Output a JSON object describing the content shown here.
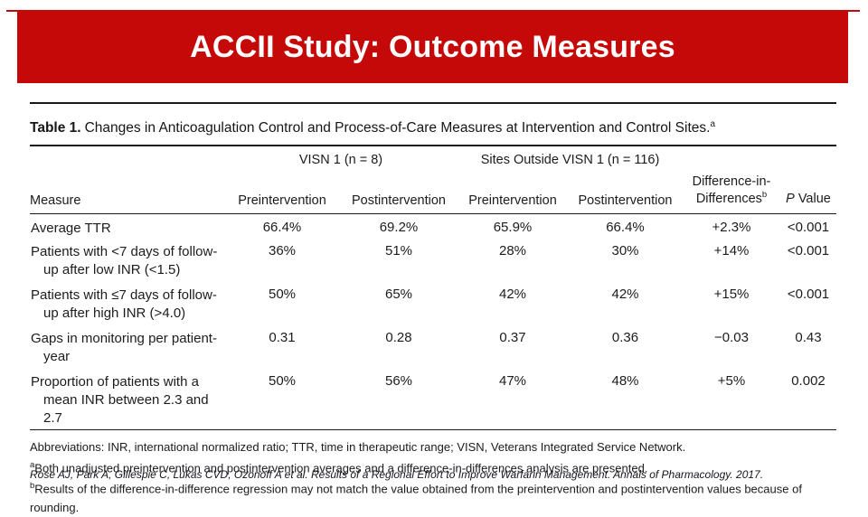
{
  "slide": {
    "title": "ACCII Study: Outcome Measures",
    "accent_color": "#c50808"
  },
  "table": {
    "caption": {
      "label": "Table 1.",
      "text": "Changes in Anticoagulation Control and Process-of-Care Measures at Intervention and Control Sites.",
      "sup": "a"
    },
    "group_headers": [
      "VISN 1 (n = 8)",
      "Sites Outside VISN 1 (n = 116)"
    ],
    "col_measure": "Measure",
    "col_pre_1": "Preintervention",
    "col_post_1": "Postintervention",
    "col_pre_2": "Preintervention",
    "col_post_2": "Postintervention",
    "col_diff": "Difference-in-Differences",
    "col_diff_sup": "b",
    "col_p_italic": "P",
    "col_p_rest": " Value",
    "rows": [
      {
        "measure_lines": [
          "Average TTR"
        ],
        "values": [
          "66.4%",
          "69.2%",
          "65.9%",
          "66.4%",
          "+2.3%",
          "<0.001"
        ]
      },
      {
        "measure_lines": [
          "Patients with <7 days of follow-",
          "up after low INR (<1.5)"
        ],
        "values": [
          "36%",
          "51%",
          "28%",
          "30%",
          "+14%",
          "<0.001"
        ]
      },
      {
        "measure_lines": [
          "Patients with ≤7 days of follow-",
          "up after high INR (>4.0)"
        ],
        "values": [
          "50%",
          "65%",
          "42%",
          "42%",
          "+15%",
          "<0.001"
        ]
      },
      {
        "measure_lines": [
          "Gaps in monitoring per patient-",
          "year"
        ],
        "values": [
          "0.31",
          "0.28",
          "0.37",
          "0.36",
          "−0.03",
          "0.43"
        ]
      },
      {
        "measure_lines": [
          "Proportion of patients with a",
          "mean INR between 2.3 and 2.7"
        ],
        "values": [
          "50%",
          "56%",
          "47%",
          "48%",
          "+5%",
          "0.002"
        ]
      }
    ]
  },
  "footnotes": {
    "abbreviations": "Abbreviations: INR, international normalized ratio; TTR, time in therapeutic range; VISN, Veterans Integrated Service Network.",
    "a_sup": "a",
    "a_text": "Both unadjusted preintervention and postintervention averages and a difference-in-differences analysis are presented.",
    "b_sup": "b",
    "b_text": "Results of the difference-in-difference regression may not match the value obtained from the preintervention and postintervention values because of rounding."
  },
  "citation": "Rose AJ, Park A, Gillespie C, Lukas CVD, Ozonoff A et al. Results of a Regional Effort to Improve Warfarin Management. Annals of Pharmacology. 2017."
}
